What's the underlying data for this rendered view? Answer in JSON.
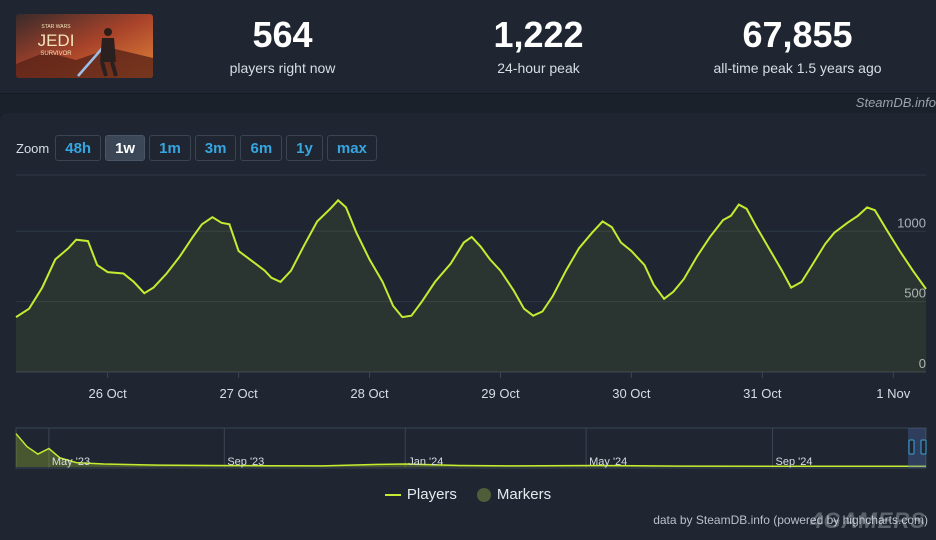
{
  "game": {
    "thumb_title": "JEDI",
    "thumb_super": "STAR WARS",
    "thumb_sub": "SURVIVOR"
  },
  "stats": [
    {
      "value": "564",
      "label": "players right now"
    },
    {
      "value": "1,222",
      "label": "24-hour peak"
    },
    {
      "value": "67,855",
      "label": "all-time peak 1.5 years ago"
    }
  ],
  "credit": "SteamDB.info",
  "zoom": {
    "label": "Zoom",
    "buttons": [
      "48h",
      "1w",
      "1m",
      "3m",
      "6m",
      "1y",
      "max"
    ],
    "active": "1w"
  },
  "legend": {
    "players": "Players",
    "markers": "Markers"
  },
  "footer": "data by SteamDB.info (powered by highcharts.com)",
  "watermark": "4GAMERS",
  "colors": {
    "line": "#c4ec31",
    "marker": "#4f5e38",
    "accent": "#36a5e0"
  },
  "chart_data": [
    {
      "type": "line",
      "ylim": [
        0,
        1400
      ],
      "yticks": [
        0,
        500,
        1000
      ],
      "x_ticks": [
        "26 Oct",
        "27 Oct",
        "28 Oct",
        "29 Oct",
        "30 Oct",
        "31 Oct",
        "1 Nov"
      ],
      "x_start": 25.3,
      "x_end": 32.25,
      "series": [
        {
          "name": "Players",
          "points": [
            [
              25.3,
              390
            ],
            [
              25.4,
              450
            ],
            [
              25.5,
              600
            ],
            [
              25.6,
              800
            ],
            [
              25.7,
              880
            ],
            [
              25.76,
              940
            ],
            [
              25.85,
              930
            ],
            [
              25.92,
              760
            ],
            [
              26.0,
              710
            ],
            [
              26.12,
              700
            ],
            [
              26.2,
              640
            ],
            [
              26.28,
              560
            ],
            [
              26.35,
              600
            ],
            [
              26.45,
              700
            ],
            [
              26.55,
              820
            ],
            [
              26.65,
              960
            ],
            [
              26.72,
              1050
            ],
            [
              26.8,
              1100
            ],
            [
              26.87,
              1060
            ],
            [
              26.93,
              1050
            ],
            [
              27.0,
              860
            ],
            [
              27.1,
              790
            ],
            [
              27.2,
              720
            ],
            [
              27.25,
              670
            ],
            [
              27.32,
              640
            ],
            [
              27.4,
              720
            ],
            [
              27.5,
              900
            ],
            [
              27.6,
              1070
            ],
            [
              27.7,
              1160
            ],
            [
              27.76,
              1220
            ],
            [
              27.82,
              1170
            ],
            [
              27.9,
              990
            ],
            [
              28.0,
              800
            ],
            [
              28.1,
              640
            ],
            [
              28.18,
              470
            ],
            [
              28.25,
              390
            ],
            [
              28.32,
              400
            ],
            [
              28.4,
              500
            ],
            [
              28.5,
              640
            ],
            [
              28.62,
              770
            ],
            [
              28.72,
              920
            ],
            [
              28.78,
              960
            ],
            [
              28.85,
              890
            ],
            [
              28.92,
              800
            ],
            [
              29.0,
              720
            ],
            [
              29.1,
              580
            ],
            [
              29.18,
              450
            ],
            [
              29.25,
              400
            ],
            [
              29.32,
              430
            ],
            [
              29.4,
              540
            ],
            [
              29.5,
              720
            ],
            [
              29.6,
              880
            ],
            [
              29.7,
              990
            ],
            [
              29.78,
              1070
            ],
            [
              29.85,
              1030
            ],
            [
              29.92,
              920
            ],
            [
              30.0,
              860
            ],
            [
              30.1,
              760
            ],
            [
              30.17,
              620
            ],
            [
              30.25,
              520
            ],
            [
              30.32,
              570
            ],
            [
              30.4,
              660
            ],
            [
              30.5,
              820
            ],
            [
              30.6,
              960
            ],
            [
              30.7,
              1080
            ],
            [
              30.76,
              1110
            ],
            [
              30.82,
              1190
            ],
            [
              30.88,
              1160
            ],
            [
              30.95,
              1040
            ],
            [
              31.05,
              880
            ],
            [
              31.15,
              720
            ],
            [
              31.22,
              600
            ],
            [
              31.3,
              640
            ],
            [
              31.38,
              760
            ],
            [
              31.48,
              910
            ],
            [
              31.55,
              990
            ],
            [
              31.65,
              1060
            ],
            [
              31.73,
              1110
            ],
            [
              31.8,
              1170
            ],
            [
              31.86,
              1150
            ],
            [
              31.95,
              1010
            ],
            [
              32.05,
              860
            ],
            [
              32.15,
              720
            ],
            [
              32.25,
              590
            ]
          ]
        }
      ]
    },
    {
      "type": "area",
      "x_ticks": [
        "May '23",
        "Sep '23",
        "Jan '24",
        "May '24",
        "Sep '24"
      ],
      "x_start": 2023.29,
      "x_end": 2024.95,
      "series": [
        {
          "name": "Players",
          "points": [
            [
              2023.29,
              0.9
            ],
            [
              2023.31,
              0.55
            ],
            [
              2023.33,
              0.35
            ],
            [
              2023.35,
              0.5
            ],
            [
              2023.37,
              0.25
            ],
            [
              2023.4,
              0.12
            ],
            [
              2023.45,
              0.08
            ],
            [
              2023.55,
              0.05
            ],
            [
              2023.65,
              0.04
            ],
            [
              2023.75,
              0.035
            ],
            [
              2023.85,
              0.03
            ],
            [
              2023.95,
              0.07
            ],
            [
              2024.0,
              0.08
            ],
            [
              2024.1,
              0.04
            ],
            [
              2024.2,
              0.03
            ],
            [
              2024.35,
              0.04
            ],
            [
              2024.5,
              0.025
            ],
            [
              2024.65,
              0.02
            ],
            [
              2024.8,
              0.02
            ],
            [
              2024.95,
              0.02
            ]
          ]
        }
      ]
    }
  ]
}
